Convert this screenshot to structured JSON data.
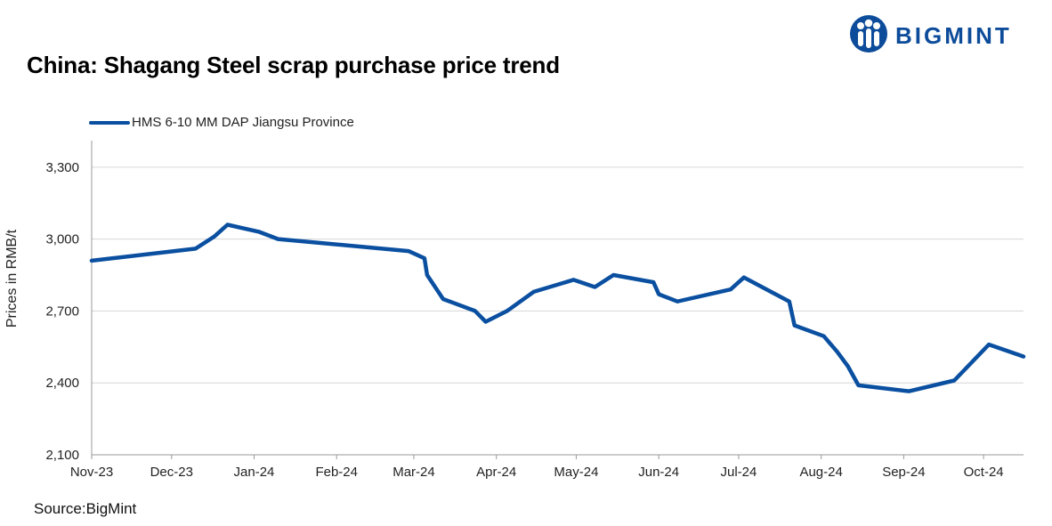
{
  "brand": {
    "name": "BIGMINT",
    "color": "#0d4c9a",
    "icon": "bigmint-people-logo-icon"
  },
  "chart_data": {
    "type": "line",
    "title": "China: Shagang Steel scrap purchase price trend",
    "ylabel": "Prices in RMB/t",
    "xlabel": "",
    "source": "Source:BigMint",
    "ylim": [
      2100,
      3500
    ],
    "yticks": [
      2100,
      2400,
      2700,
      3000,
      3300
    ],
    "ytick_labels": [
      "2,100",
      "2,400",
      "2,700",
      "3,000",
      "3,300"
    ],
    "x_ticks": [
      {
        "label": "Nov-23",
        "date": "2023-11-01"
      },
      {
        "label": "Dec-23",
        "date": "2023-12-01"
      },
      {
        "label": "Jan-24",
        "date": "2024-01-01"
      },
      {
        "label": "Feb-24",
        "date": "2024-02-01"
      },
      {
        "label": "Mar-24",
        "date": "2024-03-01"
      },
      {
        "label": "Apr-24",
        "date": "2024-04-01"
      },
      {
        "label": "May-24",
        "date": "2024-05-01"
      },
      {
        "label": "Jun-24",
        "date": "2024-06-01"
      },
      {
        "label": "Jul-24",
        "date": "2024-07-01"
      },
      {
        "label": "Aug-24",
        "date": "2024-08-01"
      },
      {
        "label": "Sep-24",
        "date": "2024-09-01"
      },
      {
        "label": "Oct-24",
        "date": "2024-10-01"
      }
    ],
    "x_range": [
      "2023-11-01",
      "2024-10-16"
    ],
    "grid": "horizontal",
    "legend_position": "top-left",
    "series": [
      {
        "name": "HMS 6-10 MM DAP Jiangsu Province",
        "color": "#0a4fa0",
        "points": [
          [
            "2023-11-01",
            2910
          ],
          [
            "2023-12-10",
            2960
          ],
          [
            "2023-12-17",
            3010
          ],
          [
            "2023-12-22",
            3060
          ],
          [
            "2024-01-03",
            3030
          ],
          [
            "2024-01-10",
            3000
          ],
          [
            "2024-02-28",
            2950
          ],
          [
            "2024-03-05",
            2920
          ],
          [
            "2024-03-06",
            2850
          ],
          [
            "2024-03-12",
            2750
          ],
          [
            "2024-03-24",
            2700
          ],
          [
            "2024-03-28",
            2655
          ],
          [
            "2024-04-05",
            2700
          ],
          [
            "2024-04-15",
            2780
          ],
          [
            "2024-04-30",
            2830
          ],
          [
            "2024-05-08",
            2800
          ],
          [
            "2024-05-15",
            2850
          ],
          [
            "2024-05-30",
            2820
          ],
          [
            "2024-06-01",
            2770
          ],
          [
            "2024-06-08",
            2740
          ],
          [
            "2024-06-28",
            2790
          ],
          [
            "2024-07-03",
            2840
          ],
          [
            "2024-07-20",
            2740
          ],
          [
            "2024-07-22",
            2640
          ],
          [
            "2024-08-02",
            2595
          ],
          [
            "2024-08-07",
            2530
          ],
          [
            "2024-08-11",
            2470
          ],
          [
            "2024-08-15",
            2390
          ],
          [
            "2024-09-03",
            2365
          ],
          [
            "2024-09-20",
            2410
          ],
          [
            "2024-10-03",
            2560
          ],
          [
            "2024-10-16",
            2510
          ]
        ]
      }
    ]
  }
}
